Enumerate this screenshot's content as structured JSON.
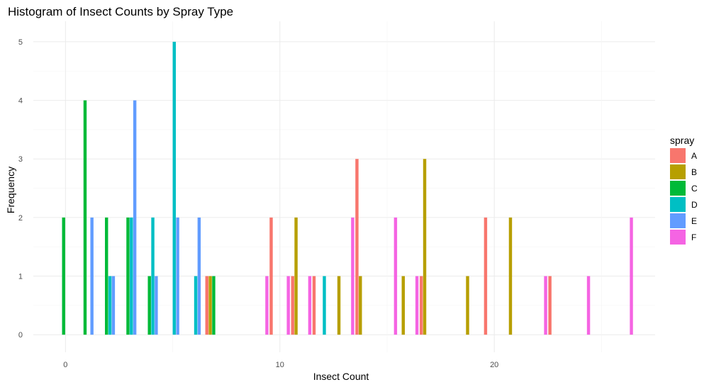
{
  "chart_data": {
    "type": "bar",
    "title": "Histogram of Insect Counts by Spray Type",
    "xlabel": "Insect Count",
    "ylabel": "Frequency",
    "xlim": [
      -1.5,
      27.5
    ],
    "ylim": [
      -0.3,
      5.35
    ],
    "x_ticks": [
      0,
      10,
      20
    ],
    "y_ticks": [
      0,
      1,
      2,
      3,
      4,
      5
    ],
    "grid": true,
    "legend": {
      "title": "spray",
      "placement": "right"
    },
    "series": [
      {
        "name": "A",
        "color": "#F8766D",
        "values": [
          [
            7,
            1
          ],
          [
            10,
            2
          ],
          [
            11,
            1
          ],
          [
            12,
            1
          ],
          [
            14,
            3
          ],
          [
            17,
            1
          ],
          [
            20,
            2
          ],
          [
            23,
            1
          ]
        ]
      },
      {
        "name": "B",
        "color": "#B79F00",
        "values": [
          [
            7,
            1
          ],
          [
            11,
            2
          ],
          [
            13,
            1
          ],
          [
            14,
            1
          ],
          [
            16,
            1
          ],
          [
            17,
            3
          ],
          [
            19,
            1
          ],
          [
            21,
            2
          ]
        ]
      },
      {
        "name": "C",
        "color": "#00BA38",
        "values": [
          [
            0,
            2
          ],
          [
            1,
            4
          ],
          [
            2,
            2
          ],
          [
            3,
            2
          ],
          [
            4,
            1
          ],
          [
            7,
            1
          ]
        ]
      },
      {
        "name": "D",
        "color": "#00BFC4",
        "values": [
          [
            2,
            1
          ],
          [
            3,
            2
          ],
          [
            4,
            2
          ],
          [
            5,
            5
          ],
          [
            6,
            1
          ],
          [
            12,
            1
          ]
        ]
      },
      {
        "name": "E",
        "color": "#619CFF",
        "values": [
          [
            1,
            2
          ],
          [
            2,
            1
          ],
          [
            3,
            4
          ],
          [
            4,
            1
          ],
          [
            5,
            2
          ],
          [
            6,
            2
          ]
        ]
      },
      {
        "name": "F",
        "color": "#F564E3",
        "values": [
          [
            9,
            1
          ],
          [
            10,
            1
          ],
          [
            11,
            1
          ],
          [
            13,
            2
          ],
          [
            15,
            2
          ],
          [
            16,
            1
          ],
          [
            22,
            1
          ],
          [
            24,
            1
          ],
          [
            26,
            2
          ]
        ]
      }
    ]
  }
}
